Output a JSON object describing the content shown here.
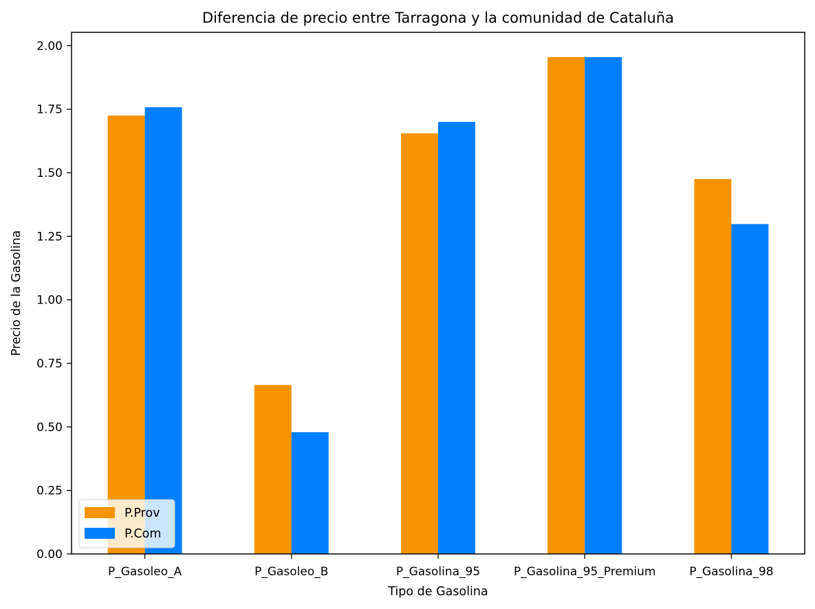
{
  "chart_data": {
    "type": "bar",
    "title": "Diferencia de precio entre Tarragona y la comunidad de Cataluña",
    "xlabel": "Tipo de Gasolina",
    "ylabel": "Precio de la Gasolina",
    "categories": [
      "P_Gasoleo_A",
      "P_Gasoleo_B",
      "P_Gasolina_95",
      "P_Gasolina_95_Premium",
      "P_Gasolina_98"
    ],
    "series": [
      {
        "name": "P.Prov",
        "color": "#f59300",
        "values": [
          1.725,
          0.665,
          1.655,
          1.955,
          1.475
        ]
      },
      {
        "name": "P.Com",
        "color": "#007fff",
        "values": [
          1.758,
          0.479,
          1.7,
          1.955,
          1.298
        ]
      }
    ],
    "ylim": [
      0,
      2.0525
    ],
    "yticks": [
      0.0,
      0.25,
      0.5,
      0.75,
      1.0,
      1.25,
      1.5,
      1.75,
      2.0
    ],
    "ytick_labels": [
      "0.00",
      "0.25",
      "0.50",
      "0.75",
      "1.00",
      "1.25",
      "1.50",
      "1.75",
      "2.00"
    ],
    "grid": false,
    "legend_position": "lower-left"
  }
}
